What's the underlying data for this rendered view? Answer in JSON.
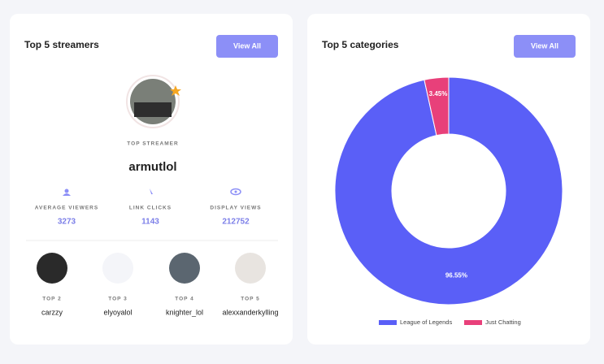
{
  "streamers_card": {
    "title": "Top 5 streamers",
    "button": "View All",
    "top_label": "TOP STREAMER",
    "top_name": "armutlol",
    "stats": [
      {
        "label": "AVERAGE VIEWERS",
        "value": 3273
      },
      {
        "label": "LINK CLICKS",
        "value": 1143
      },
      {
        "label": "DISPLAY VIEWS",
        "value": 212752
      }
    ],
    "others": [
      {
        "rank": "TOP 2",
        "name": "carzzy"
      },
      {
        "rank": "TOP 3",
        "name": "elyoyalol"
      },
      {
        "rank": "TOP 4",
        "name": "knighter_lol"
      },
      {
        "rank": "TOP 5",
        "name": "alexxanderkylling"
      }
    ]
  },
  "categories_card": {
    "title": "Top 5 categories",
    "button": "View All"
  },
  "chart_data": {
    "type": "pie",
    "donut": true,
    "categories": [
      "League of Legends",
      "Just Chatting"
    ],
    "values": [
      96.55,
      3.45
    ],
    "value_labels": [
      "96.55%",
      "3.45%"
    ],
    "colors": [
      "#5a5ff7",
      "#e8407a"
    ]
  }
}
